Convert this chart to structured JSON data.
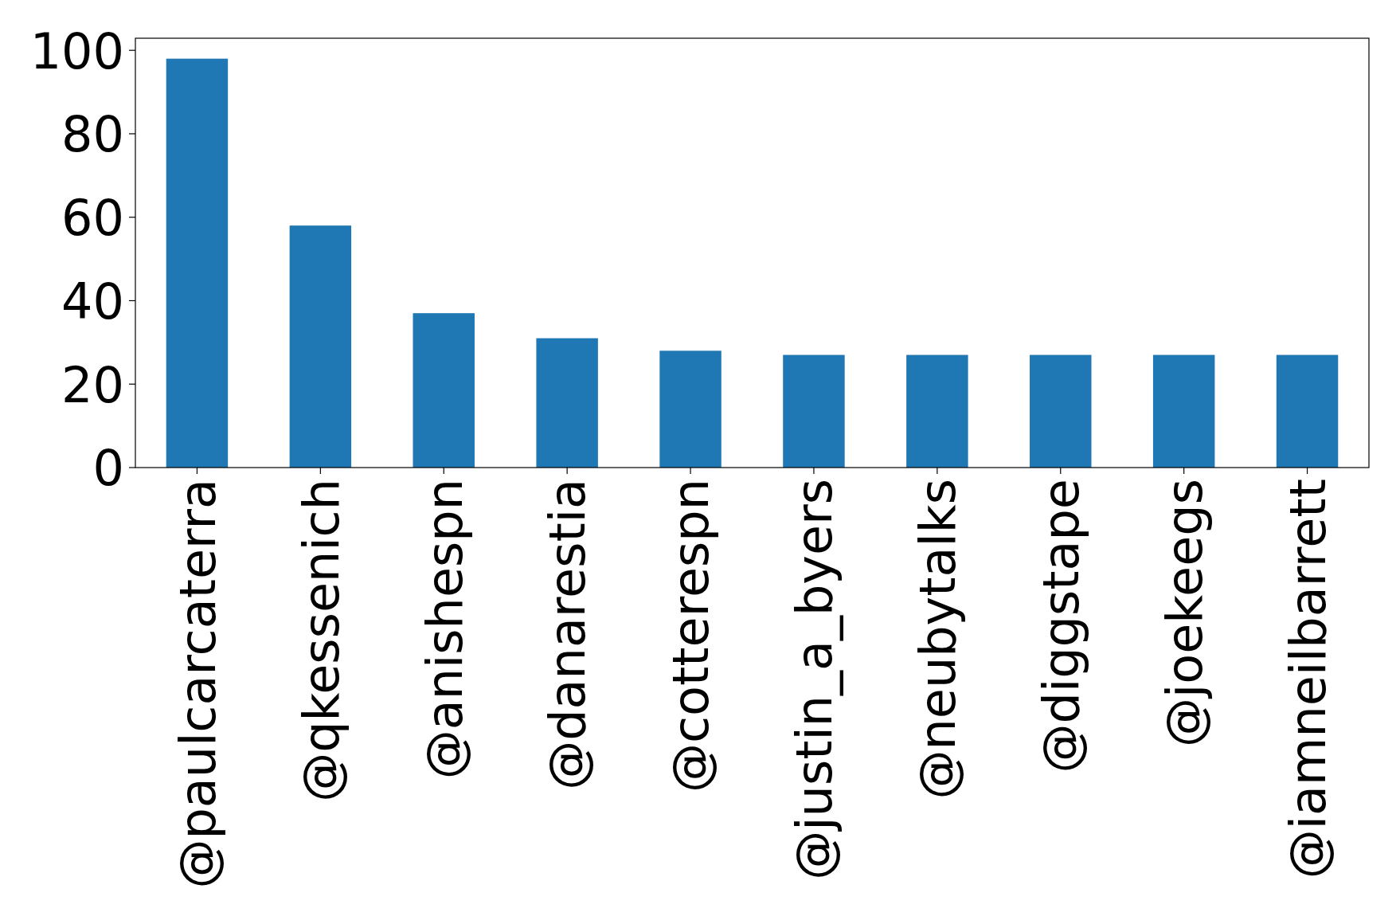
{
  "chart_data": {
    "type": "bar",
    "categories": [
      "@paulcarcaterra",
      "@qkessenich",
      "@anishespn",
      "@danarestia",
      "@cotterespn",
      "@justin_a_byers",
      "@neubytalks",
      "@diggstape",
      "@joekeegs",
      "@iamneilbarrett"
    ],
    "values": [
      98,
      58,
      37,
      31,
      28,
      27,
      27,
      27,
      27,
      27
    ],
    "color": "#1f77b4",
    "ylim": [
      0,
      102.9
    ],
    "yticks": [
      0,
      20,
      40,
      60,
      80,
      100
    ]
  }
}
